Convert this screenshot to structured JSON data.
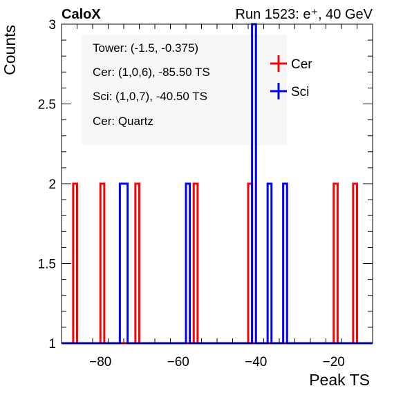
{
  "header": {
    "left_label": "CaloX",
    "right_label": "Run 1523: e⁺, 40 GeV"
  },
  "annotations": [
    "Tower: (-1.5, -0.375)",
    "Cer: (1,0,6), -85.50 TS",
    "Sci: (1,0,7), -40.50 TS",
    "Cer: Quartz"
  ],
  "chart_data": {
    "type": "histogram",
    "title": "",
    "xlabel": "Peak TS",
    "ylabel": "Counts",
    "xlim": [
      -90,
      -10
    ],
    "ylim": [
      1,
      3
    ],
    "xticks": [
      -80,
      -60,
      -40,
      -20
    ],
    "xtick_labels": [
      "−80",
      "−60",
      "−40",
      "−20"
    ],
    "yticks": [
      1,
      1.5,
      2,
      2.5,
      3
    ],
    "ytick_labels": [
      "1",
      "1.5",
      "2",
      "2.5",
      "3"
    ],
    "bin_width": 1,
    "baseline": 1,
    "legend": {
      "placement": "top-right"
    },
    "series": [
      {
        "name": "Cer",
        "color": "#ff0000",
        "bins": [
          {
            "x": -86.5,
            "count": 2
          },
          {
            "x": -79.5,
            "count": 2
          },
          {
            "x": -70.5,
            "count": 2
          },
          {
            "x": -55.5,
            "count": 2
          },
          {
            "x": -41.5,
            "count": 2
          },
          {
            "x": -19.5,
            "count": 2
          },
          {
            "x": -14.5,
            "count": 2
          }
        ]
      },
      {
        "name": "Sci",
        "color": "#0000ff",
        "bins": [
          {
            "x": -74.5,
            "count": 2
          },
          {
            "x": -73.5,
            "count": 2
          },
          {
            "x": -57.5,
            "count": 2
          },
          {
            "x": -40.5,
            "count": 3
          },
          {
            "x": -36.5,
            "count": 2
          },
          {
            "x": -32.5,
            "count": 2
          }
        ]
      }
    ]
  }
}
